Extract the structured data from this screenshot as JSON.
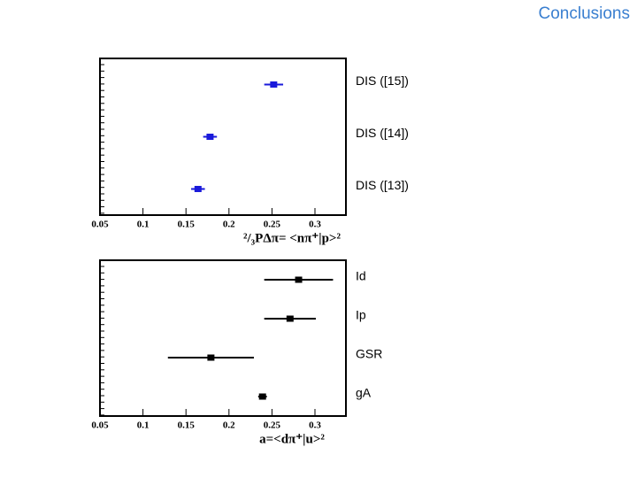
{
  "header": {
    "title": "Conclusions"
  },
  "chart_data": [
    {
      "type": "dot-errorbar",
      "x_label": "²/₃PΔπ= <nπ⁺|p>²",
      "categories": [
        "DIS ([15])",
        "DIS ([14])",
        "DIS ([13])"
      ],
      "values": [
        0.252,
        0.178,
        0.164
      ],
      "errors": [
        0.011,
        0.008,
        0.008
      ],
      "color": "#1a1adb",
      "xlim": [
        0.05,
        0.336
      ],
      "xticks": [
        0.05,
        0.1,
        0.15,
        0.2,
        0.25,
        0.3
      ]
    },
    {
      "type": "dot-errorbar",
      "x_label": "a=<dπ⁺|u>²",
      "categories": [
        "Id",
        "Ip",
        "GSR",
        "gA"
      ],
      "values": [
        0.281,
        0.271,
        0.179,
        0.239
      ],
      "errors": [
        0.04,
        0.03,
        0.05,
        0.005
      ],
      "color": "#000000",
      "xlim": [
        0.05,
        0.336
      ],
      "xticks": [
        0.05,
        0.1,
        0.15,
        0.2,
        0.25,
        0.3
      ]
    }
  ]
}
